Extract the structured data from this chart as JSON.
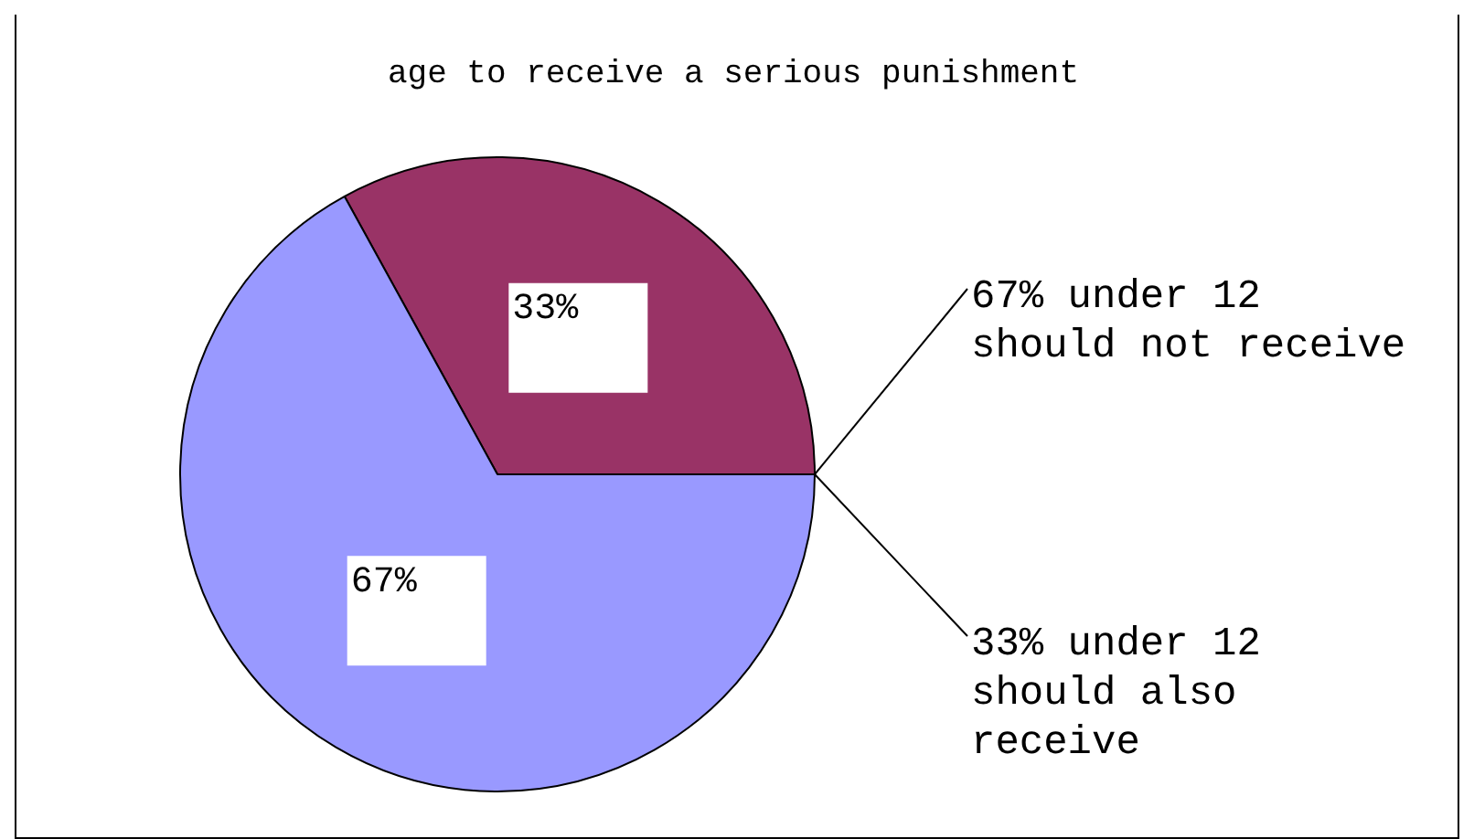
{
  "chart_data": {
    "type": "pie",
    "title": "age to receive a serious punishment",
    "categories": [
      "33% under 12 should also receive",
      "67% under 12 should not receive"
    ],
    "values": [
      33,
      67
    ],
    "colors": [
      "#993366",
      "#9999ff"
    ],
    "value_labels": [
      "33%",
      "67%"
    ],
    "legend": false
  }
}
